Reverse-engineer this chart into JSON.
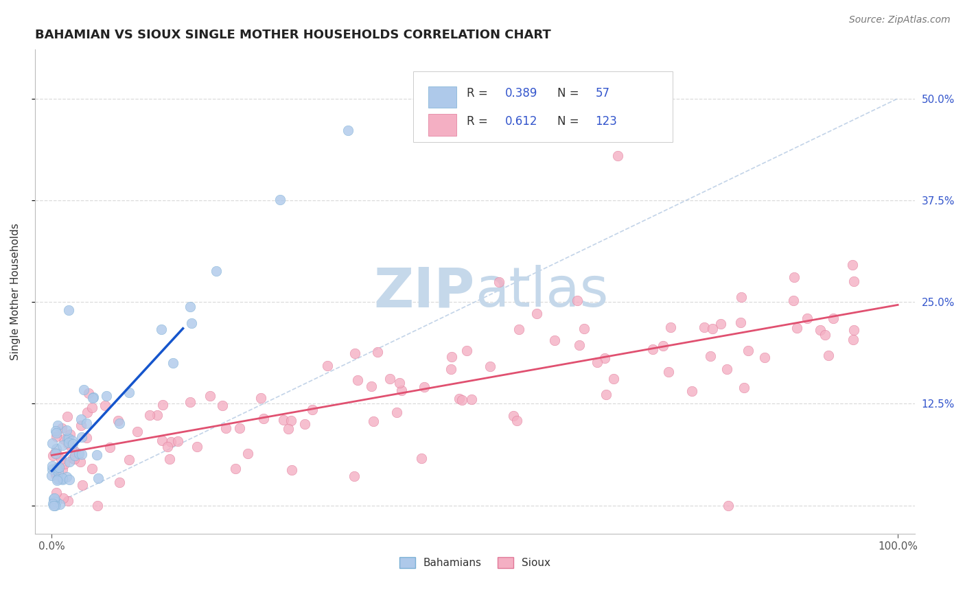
{
  "title": "BAHAMIAN VS SIOUX SINGLE MOTHER HOUSEHOLDS CORRELATION CHART",
  "source_text": "Source: ZipAtlas.com",
  "ylabel": "Single Mother Households",
  "xlim": [
    -0.02,
    1.02
  ],
  "ylim": [
    -0.035,
    0.56
  ],
  "y_ticks": [
    0.0,
    0.125,
    0.25,
    0.375,
    0.5
  ],
  "y_tick_labels": [
    "",
    "12.5%",
    "25.0%",
    "37.5%",
    "50.0%"
  ],
  "bahamian_color": "#aec9ea",
  "sioux_color": "#f4afc3",
  "bahamian_edge_color": "#7aafd4",
  "sioux_edge_color": "#e07898",
  "trend_blue": "#1555cc",
  "trend_pink": "#e05070",
  "diagonal_color": "#b8cce4",
  "legend_text_color": "#3355cc",
  "legend_label_color": "#333333",
  "watermark_color": "#c5d8ea",
  "grid_color": "#d8d8d8",
  "background_color": "#ffffff",
  "title_fontsize": 13,
  "source_fontsize": 10,
  "tick_color": "#3355cc",
  "legend_R_blue": "0.389",
  "legend_N_blue": "57",
  "legend_R_pink": "0.612",
  "legend_N_pink": "123"
}
